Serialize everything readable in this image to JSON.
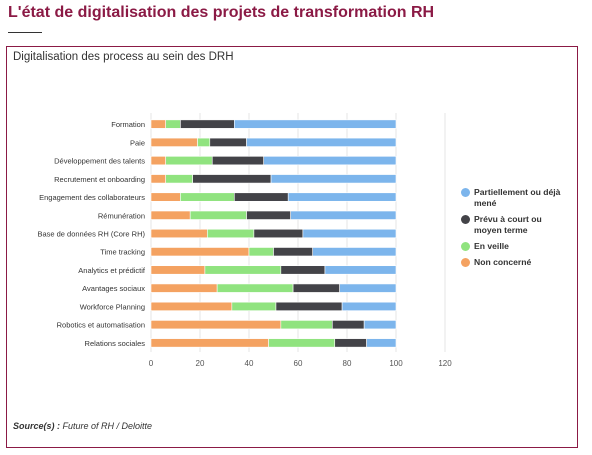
{
  "page": {
    "title": "L'état de digitalisation des projets de transformation RH"
  },
  "chart_data": {
    "type": "bar",
    "orientation": "horizontal",
    "stacked": true,
    "title": "Digitalisation des process au sein des DRH",
    "categories": [
      "Formation",
      "Paie",
      "Développement des talents",
      "Recrutement et onboarding",
      "Engagement des collaborateurs",
      "Rémunération",
      "Base de données RH (Core RH)",
      "Time tracking",
      "Analytics et prédictif",
      "Avantages sociaux",
      "Workforce Planning",
      "Robotics et automatisation",
      "Relations sociales"
    ],
    "series": [
      {
        "name": "Non concerné",
        "color": "#f4a261",
        "values": [
          6,
          19,
          6,
          6,
          12,
          16,
          23,
          40,
          22,
          27,
          33,
          53,
          48
        ]
      },
      {
        "name": "En veille",
        "color": "#90e37f",
        "values": [
          6,
          5,
          19,
          11,
          22,
          23,
          19,
          10,
          31,
          31,
          18,
          21,
          27
        ]
      },
      {
        "name": "Prévu à court ou moyen terme",
        "color": "#434348",
        "values": [
          22,
          15,
          21,
          32,
          22,
          18,
          20,
          16,
          18,
          19,
          27,
          13,
          13
        ]
      },
      {
        "name": "Partiellement ou déjà mené",
        "color": "#7cb5ec",
        "values": [
          66,
          61,
          54,
          51,
          44,
          43,
          38,
          34,
          29,
          23,
          22,
          13,
          12
        ]
      }
    ],
    "legend_order": [
      "Partiellement ou déjà mené",
      "Prévu à court ou moyen terme",
      "En veille",
      "Non concerné"
    ],
    "xlim": [
      0,
      120
    ],
    "xticks": [
      "0",
      "20",
      "40",
      "60",
      "80",
      "100",
      "120"
    ],
    "grid": true,
    "legend_position": "right"
  },
  "source": {
    "label": "Source(s) :",
    "value": "Future of RH / Deloitte"
  }
}
